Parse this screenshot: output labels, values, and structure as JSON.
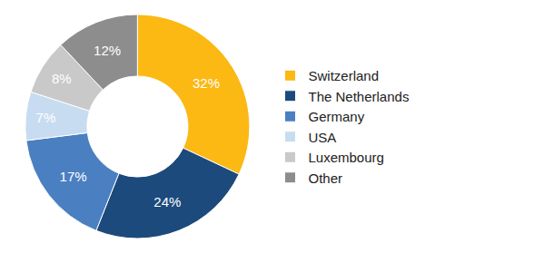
{
  "chart_data": {
    "type": "pie",
    "categories": [
      "Switzerland",
      "The Netherlands",
      "Germany",
      "USA",
      "Luxembourg",
      "Other"
    ],
    "values": [
      32,
      24,
      17,
      7,
      8,
      12
    ],
    "value_labels": [
      "32%",
      "24%",
      "17%",
      "7%",
      "8%",
      "12%"
    ],
    "colors": [
      "#fcb813",
      "#1c4a7c",
      "#4a7fc2",
      "#c7dcf1",
      "#c9c9c9",
      "#8d8d8d"
    ],
    "data_labels": true,
    "legend": "right"
  }
}
